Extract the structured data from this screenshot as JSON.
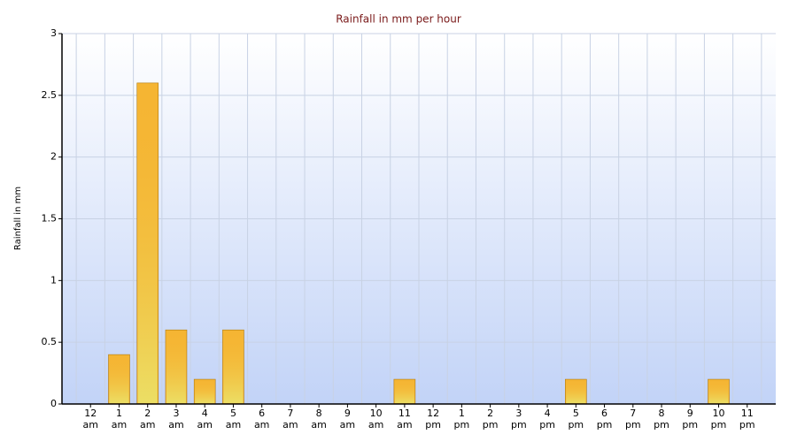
{
  "chart_data": {
    "type": "bar",
    "title": "Rainfall in mm per hour",
    "y_label": "Rainfall in mm",
    "categories": [
      "12 am",
      "1 am",
      "2 am",
      "3 am",
      "4 am",
      "5 am",
      "6 am",
      "7 am",
      "8 am",
      "9 am",
      "10 am",
      "11 am",
      "12 pm",
      "1 pm",
      "2 pm",
      "3 pm",
      "4 pm",
      "5 pm",
      "6 pm",
      "7 pm",
      "8 pm",
      "9 pm",
      "10 pm",
      "11 pm"
    ],
    "values": [
      0,
      0.4,
      2.6,
      0.6,
      0.2,
      0.6,
      0,
      0,
      0,
      0,
      0,
      0.2,
      0,
      0,
      0,
      0,
      0,
      0.2,
      0,
      0,
      0,
      0,
      0.2,
      0
    ],
    "color": "#f5b533",
    "ylim": [
      0,
      3
    ],
    "yticks": [
      0,
      0.5,
      1,
      1.5,
      2,
      2.5,
      3
    ],
    "grid": true
  }
}
